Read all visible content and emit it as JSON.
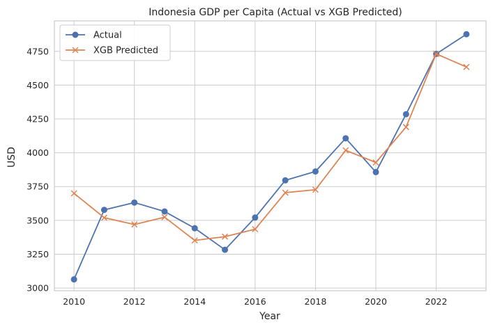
{
  "chart_data": {
    "type": "line",
    "title": "Indonesia GDP per Capita (Actual vs XGB Predicted)",
    "xlabel": "Year",
    "ylabel": "USD",
    "xlim": [
      2009.35,
      2023.65
    ],
    "ylim": [
      2980,
      4975
    ],
    "xticks": [
      2010,
      2012,
      2014,
      2016,
      2018,
      2020,
      2022
    ],
    "yticks": [
      3000,
      3250,
      3500,
      3750,
      4000,
      4250,
      4500,
      4750
    ],
    "grid": true,
    "legend_position": "top-left",
    "x": [
      2010,
      2011,
      2012,
      2013,
      2014,
      2015,
      2016,
      2017,
      2018,
      2019,
      2020,
      2021,
      2022,
      2023
    ],
    "series": [
      {
        "name": "Actual",
        "color": "#4c72b0",
        "marker": "circle",
        "values": [
          3064,
          3578,
          3632,
          3566,
          3442,
          3283,
          3521,
          3796,
          3862,
          4107,
          3857,
          4285,
          4731,
          4876
        ]
      },
      {
        "name": "XGB Predicted",
        "color": "#dd8452",
        "marker": "x",
        "values": [
          3700,
          3520,
          3470,
          3524,
          3352,
          3380,
          3435,
          3705,
          3727,
          4018,
          3928,
          4190,
          4731,
          4634
        ]
      }
    ]
  }
}
